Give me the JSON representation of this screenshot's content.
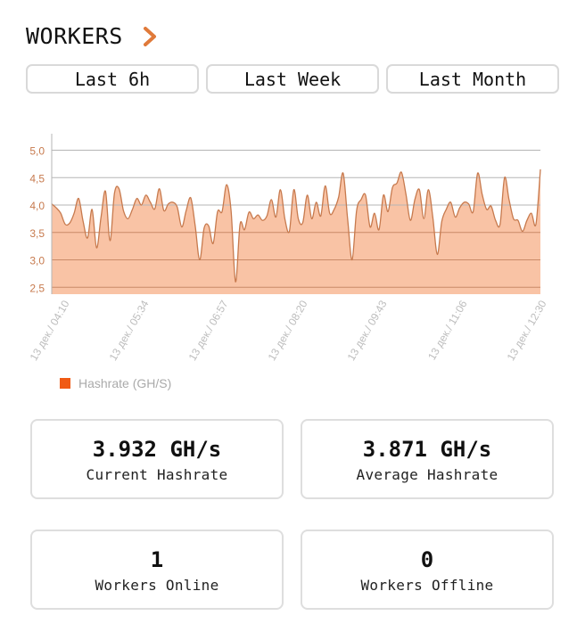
{
  "header": {
    "title": "WORKERS",
    "chevron_icon": "chevron-right-icon",
    "accent_color": "#e07a3a"
  },
  "ranges": [
    {
      "label": "Last 6h"
    },
    {
      "label": "Last Week"
    },
    {
      "label": "Last Month"
    }
  ],
  "stats": {
    "current_hashrate": {
      "value": "3.932 GH/s",
      "label": "Current Hashrate"
    },
    "average_hashrate": {
      "value": "3.871 GH/s",
      "label": "Average Hashrate"
    },
    "workers_online": {
      "value": "1",
      "label": "Workers Online"
    },
    "workers_offline": {
      "value": "0",
      "label": "Workers Offline"
    }
  },
  "chart_data": {
    "type": "area",
    "title": "",
    "xlabel": "",
    "ylabel": "",
    "ylim": [
      2.4,
      5.3
    ],
    "y_ticks": [
      "2,5",
      "3,0",
      "3,5",
      "4,0",
      "4,5",
      "5,0"
    ],
    "y_tick_values": [
      2.5,
      3.0,
      3.5,
      4.0,
      4.5,
      5.0
    ],
    "x_tick_labels": [
      "13 дек./ 04:10",
      "13 дек./ 05:34",
      "13 дек./ 06:57",
      "13 дек./ 08:20",
      "13 дек./ 09:43",
      "13 дек./ 11:06",
      "13 дек./ 12:30"
    ],
    "grid": true,
    "legend_position": "bottom-left",
    "fill_color": "#f9c3a5",
    "line_color": "#c77a4e",
    "legend_color": "#f05a14",
    "series": [
      {
        "name": "Hashrate (GH/S)",
        "values": [
          4.02,
          3.95,
          3.85,
          3.65,
          3.67,
          3.85,
          4.12,
          3.7,
          3.4,
          3.92,
          3.22,
          3.78,
          4.25,
          3.35,
          4.22,
          4.3,
          3.9,
          3.75,
          3.92,
          4.12,
          4.0,
          4.18,
          4.05,
          3.93,
          4.3,
          3.9,
          4.02,
          4.05,
          3.96,
          3.6,
          3.9,
          4.13,
          3.62,
          3.0,
          3.58,
          3.62,
          3.3,
          3.88,
          3.88,
          4.37,
          3.9,
          2.6,
          3.65,
          3.55,
          3.87,
          3.75,
          3.82,
          3.72,
          3.8,
          4.1,
          3.78,
          4.28,
          3.75,
          3.52,
          4.28,
          3.75,
          3.68,
          4.18,
          3.75,
          4.05,
          3.8,
          4.35,
          3.85,
          3.92,
          4.15,
          4.58,
          3.75,
          3.0,
          3.9,
          4.1,
          4.18,
          3.6,
          3.85,
          3.55,
          4.18,
          3.88,
          4.32,
          4.4,
          4.6,
          4.2,
          3.72,
          4.1,
          4.28,
          3.75,
          4.28,
          3.78,
          3.1,
          3.7,
          3.92,
          4.05,
          3.78,
          3.95,
          4.05,
          4.02,
          3.88,
          4.58,
          4.2,
          3.92,
          3.98,
          3.72,
          3.65,
          4.5,
          4.1,
          3.75,
          3.72,
          3.52,
          3.72,
          3.85,
          3.65,
          4.65
        ]
      }
    ]
  }
}
